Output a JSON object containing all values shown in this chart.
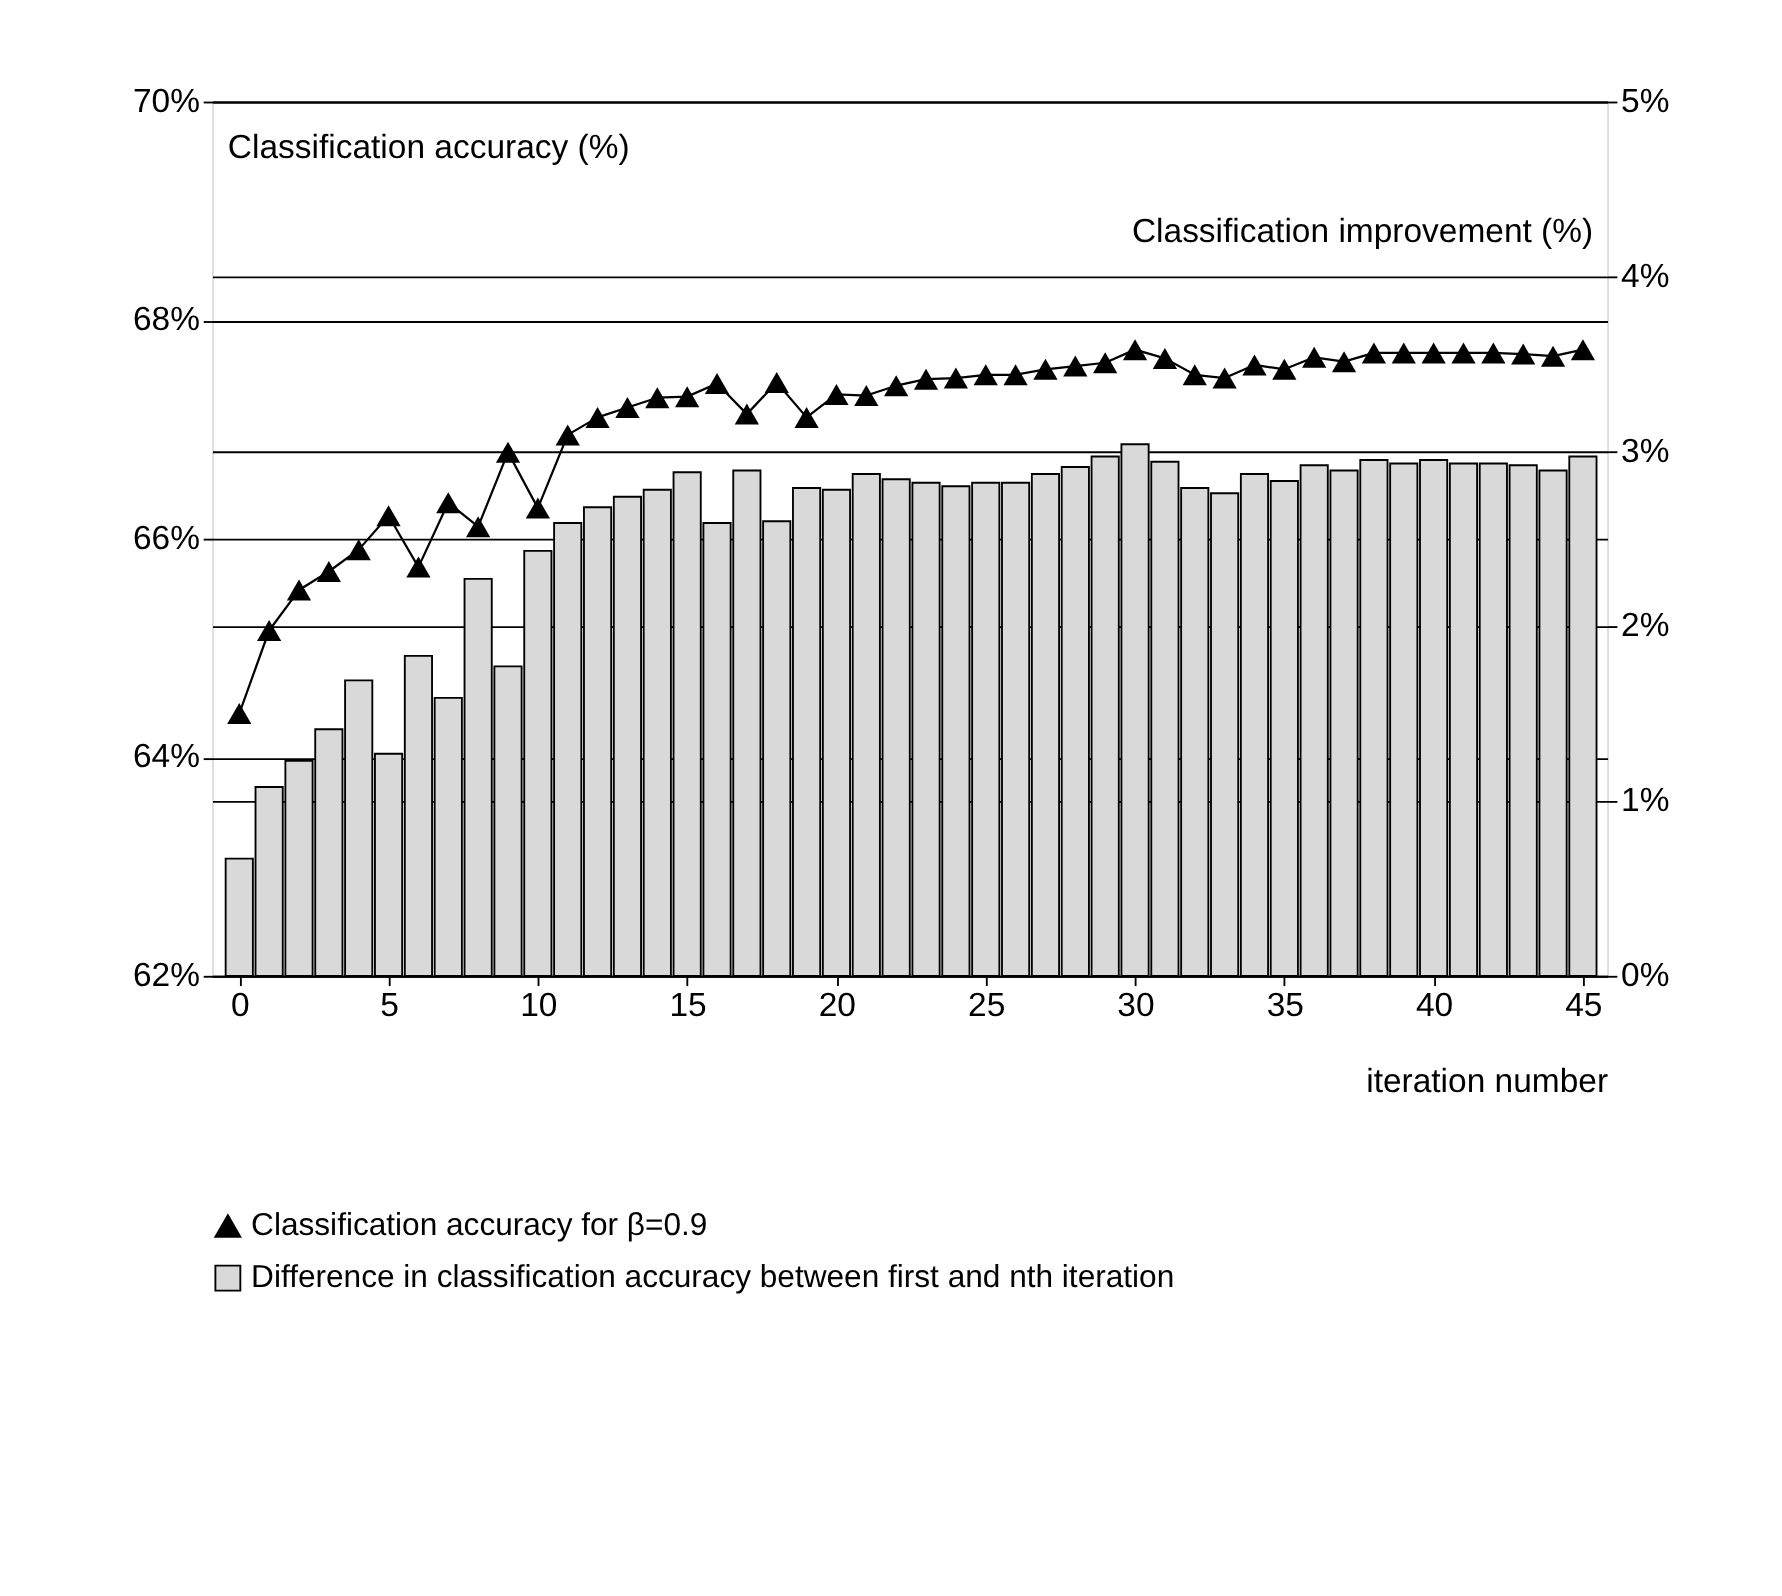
{
  "chart_data": {
    "type": "bar",
    "ylabel": "Classification accuracy (%)",
    "y2label": "Classification improvement (%)",
    "xlabel": "iteration number",
    "x": [
      0,
      1,
      2,
      3,
      4,
      5,
      6,
      7,
      8,
      9,
      10,
      11,
      12,
      13,
      14,
      15,
      16,
      17,
      18,
      19,
      20,
      21,
      22,
      23,
      24,
      25,
      26,
      27,
      28,
      29,
      30,
      31,
      32,
      33,
      34,
      35,
      36,
      37,
      38,
      39,
      40,
      41,
      42,
      43,
      44,
      45
    ],
    "series": [
      {
        "name": "Classification accuracy for β=0.9",
        "type": "line",
        "color": "#000000",
        "marker": "triangle",
        "line_style": "solid",
        "values": [
          64.4,
          65.16,
          65.53,
          65.7,
          65.9,
          66.21,
          65.74,
          66.33,
          66.11,
          66.79,
          66.28,
          66.95,
          67.11,
          67.2,
          67.29,
          67.3,
          67.42,
          67.14,
          67.43,
          67.11,
          67.32,
          67.31,
          67.4,
          67.46,
          67.47,
          67.5,
          67.5,
          67.55,
          67.58,
          67.61,
          67.73,
          67.65,
          67.5,
          67.47,
          67.59,
          67.55,
          67.66,
          67.62,
          67.7,
          67.7,
          67.7,
          67.7,
          67.7,
          67.69,
          67.67,
          67.73
        ]
      },
      {
        "name": "Difference in classification accuracy between first and nth iteration",
        "axis": "y2",
        "color": "#d9d9d9",
        "values": [
          0.67,
          1.08,
          1.23,
          1.41,
          1.69,
          1.27,
          1.83,
          1.59,
          2.27,
          1.77,
          2.43,
          2.59,
          2.68,
          2.74,
          2.78,
          2.88,
          2.59,
          2.89,
          2.6,
          2.79,
          2.78,
          2.87,
          2.84,
          2.82,
          2.8,
          2.82,
          2.82,
          2.87,
          2.91,
          2.97,
          3.04,
          2.94,
          2.79,
          2.76,
          2.87,
          2.83,
          2.92,
          2.89,
          2.95,
          2.93,
          2.95,
          2.93,
          2.93,
          2.92,
          2.89,
          2.97
        ]
      }
    ],
    "xlim": [
      -0.6,
      45.5
    ],
    "xticks": [
      0,
      5,
      10,
      15,
      20,
      25,
      30,
      35,
      40,
      45
    ],
    "ylim": [
      62,
      70
    ],
    "yticks": [
      {
        "value": 62,
        "label": "62%"
      },
      {
        "value": 64,
        "label": "64%"
      },
      {
        "value": 66,
        "label": "66%"
      },
      {
        "value": 68,
        "label": "68%"
      },
      {
        "value": 70,
        "label": "70%"
      }
    ],
    "y2lim": [
      0,
      5
    ],
    "y2ticks": [
      {
        "value": 0,
        "label": "0%"
      },
      {
        "value": 1,
        "label": "1%"
      },
      {
        "value": 2,
        "label": "2%"
      },
      {
        "value": 3,
        "label": "3%"
      },
      {
        "value": 4,
        "label": "4%"
      },
      {
        "value": 5,
        "label": "5%"
      }
    ],
    "grid": "y",
    "legend": "bottom"
  }
}
